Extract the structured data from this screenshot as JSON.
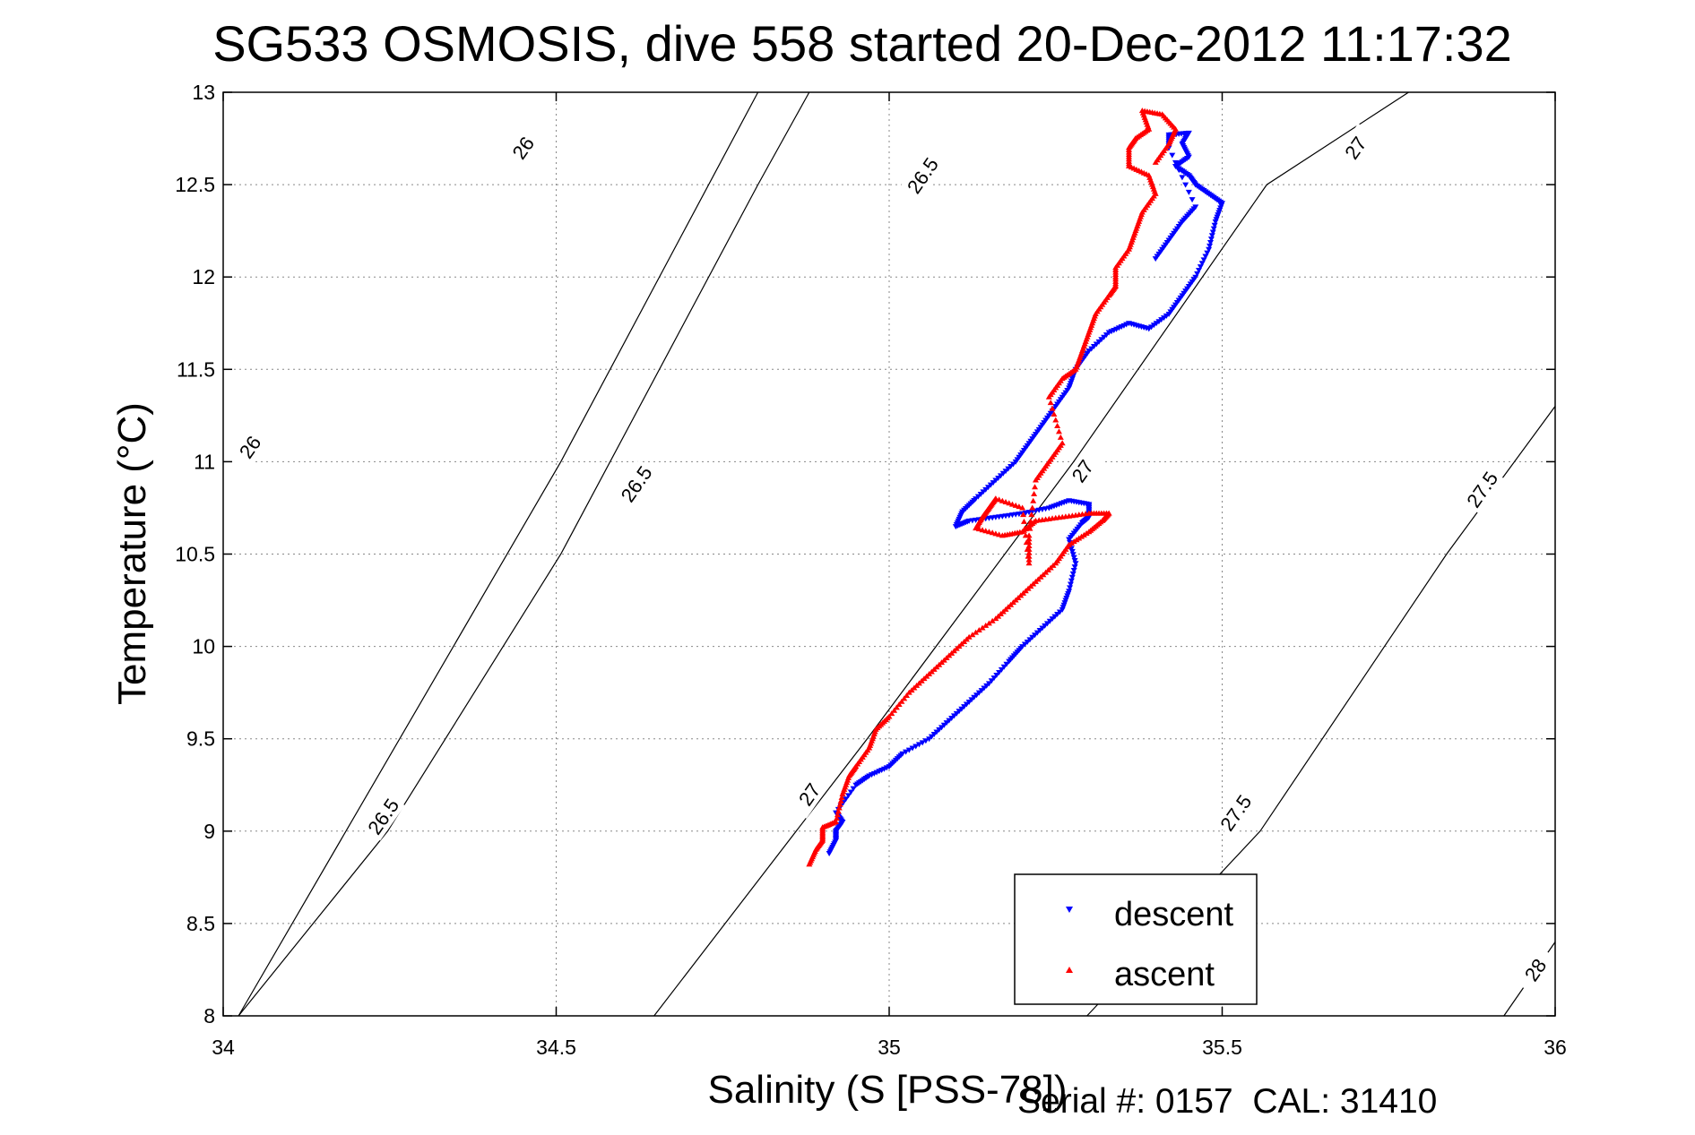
{
  "chart_data": {
    "type": "scatter",
    "title": "SG533 OSMOSIS, dive 558 started 20-Dec-2012 11:17:32",
    "xlabel": "Salinity (S [PSS-78])",
    "ylabel": "Temperature (°C)",
    "xlim": [
      34,
      36
    ],
    "ylim": [
      8,
      13
    ],
    "xticks": [
      "34",
      "34.5",
      "35",
      "35.5",
      "36"
    ],
    "yticks": [
      "8",
      "8.5",
      "9",
      "9.5",
      "10",
      "10.5",
      "11",
      "11.5",
      "12",
      "12.5",
      "13"
    ],
    "grid": true,
    "legend_position": "bottom-right",
    "legend": [
      "descent",
      "ascent"
    ],
    "contours": [
      {
        "level": 26.0,
        "points": [
          [
            34.023,
            8.0
          ],
          [
            34.507,
            11.0
          ],
          [
            34.803,
            13.0
          ]
        ],
        "labels": [
          {
            "text": "26",
            "x": 34.04,
            "y": 11.08
          },
          {
            "text": "26",
            "x": 34.45,
            "y": 12.7
          }
        ]
      },
      {
        "level": 26.5,
        "points": [
          [
            34.023,
            8.0
          ],
          [
            34.247,
            9.0
          ],
          [
            34.507,
            10.5
          ],
          [
            34.803,
            12.5
          ],
          [
            34.88,
            13.0
          ]
        ],
        "labels": [
          {
            "text": "26.5",
            "x": 34.24,
            "y": 9.08
          },
          {
            "text": "26.5",
            "x": 34.62,
            "y": 10.88
          },
          {
            "text": "26.5",
            "x": 35.05,
            "y": 12.55
          }
        ]
      },
      {
        "level": 27.0,
        "points": [
          [
            34.647,
            8.0
          ],
          [
            34.967,
            9.5
          ],
          [
            35.277,
            11.0
          ],
          [
            35.567,
            12.5
          ],
          [
            35.78,
            13.0
          ]
        ],
        "labels": [
          {
            "text": "27",
            "x": 34.88,
            "y": 9.2
          },
          {
            "text": "27",
            "x": 35.29,
            "y": 10.95
          },
          {
            "text": "27",
            "x": 35.7,
            "y": 12.7
          }
        ]
      },
      {
        "level": 27.5,
        "points": [
          [
            35.297,
            8.0
          ],
          [
            35.557,
            9.0
          ],
          [
            35.837,
            10.5
          ],
          [
            36.0,
            11.3
          ]
        ],
        "labels": [
          {
            "text": "27.5",
            "x": 35.52,
            "y": 9.1
          },
          {
            "text": "27.5",
            "x": 35.89,
            "y": 10.85
          }
        ]
      },
      {
        "level": 28.0,
        "points": [
          [
            35.923,
            8.0
          ],
          [
            36.0,
            8.4
          ]
        ],
        "labels": [
          {
            "text": "28",
            "x": 35.97,
            "y": 8.25
          }
        ]
      }
    ],
    "series": [
      {
        "name": "descent",
        "color": "#0000ff",
        "marker": "triangle-down",
        "points": [
          [
            34.91,
            8.88
          ],
          [
            34.92,
            8.95
          ],
          [
            34.92,
            9.0
          ],
          [
            34.93,
            9.05
          ],
          [
            34.92,
            9.1
          ],
          [
            34.95,
            9.25
          ],
          [
            34.97,
            9.3
          ],
          [
            35.0,
            9.35
          ],
          [
            35.02,
            9.42
          ],
          [
            35.06,
            9.5
          ],
          [
            35.09,
            9.6
          ],
          [
            35.12,
            9.7
          ],
          [
            35.15,
            9.8
          ],
          [
            35.18,
            9.92
          ],
          [
            35.2,
            10.0
          ],
          [
            35.23,
            10.1
          ],
          [
            35.26,
            10.2
          ],
          [
            35.27,
            10.3
          ],
          [
            35.28,
            10.45
          ],
          [
            35.27,
            10.58
          ],
          [
            35.29,
            10.67
          ],
          [
            35.3,
            10.7
          ],
          [
            35.3,
            10.77
          ],
          [
            35.27,
            10.79
          ],
          [
            35.24,
            10.75
          ],
          [
            35.2,
            10.72
          ],
          [
            35.16,
            10.7
          ],
          [
            35.12,
            10.68
          ],
          [
            35.1,
            10.65
          ],
          [
            35.11,
            10.73
          ],
          [
            35.13,
            10.8
          ],
          [
            35.16,
            10.9
          ],
          [
            35.19,
            11.0
          ],
          [
            35.21,
            11.1
          ],
          [
            35.23,
            11.2
          ],
          [
            35.25,
            11.3
          ],
          [
            35.27,
            11.4
          ],
          [
            35.28,
            11.5
          ],
          [
            35.3,
            11.6
          ],
          [
            35.33,
            11.7
          ],
          [
            35.36,
            11.75
          ],
          [
            35.39,
            11.72
          ],
          [
            35.42,
            11.8
          ],
          [
            35.44,
            11.9
          ],
          [
            35.46,
            12.0
          ],
          [
            35.48,
            12.15
          ],
          [
            35.49,
            12.3
          ],
          [
            35.5,
            12.4
          ],
          [
            35.48,
            12.45
          ],
          [
            35.46,
            12.5
          ],
          [
            35.45,
            12.55
          ],
          [
            35.43,
            12.6
          ],
          [
            35.45,
            12.65
          ],
          [
            35.44,
            12.72
          ],
          [
            35.45,
            12.78
          ],
          [
            35.42,
            12.77
          ],
          [
            35.42,
            12.7
          ],
          [
            35.46,
            12.38
          ],
          [
            35.44,
            12.3
          ],
          [
            35.42,
            12.2
          ],
          [
            35.4,
            12.1
          ]
        ]
      },
      {
        "name": "ascent",
        "color": "#ff0000",
        "marker": "triangle-up",
        "points": [
          [
            34.88,
            8.82
          ],
          [
            34.89,
            8.9
          ],
          [
            34.9,
            8.95
          ],
          [
            34.9,
            9.02
          ],
          [
            34.92,
            9.05
          ],
          [
            34.93,
            9.2
          ],
          [
            34.94,
            9.3
          ],
          [
            34.95,
            9.35
          ],
          [
            34.97,
            9.45
          ],
          [
            34.98,
            9.55
          ],
          [
            35.0,
            9.62
          ],
          [
            35.03,
            9.75
          ],
          [
            35.06,
            9.85
          ],
          [
            35.09,
            9.95
          ],
          [
            35.12,
            10.05
          ],
          [
            35.16,
            10.15
          ],
          [
            35.19,
            10.25
          ],
          [
            35.22,
            10.35
          ],
          [
            35.25,
            10.45
          ],
          [
            35.27,
            10.55
          ],
          [
            35.3,
            10.62
          ],
          [
            35.32,
            10.68
          ],
          [
            35.33,
            10.72
          ],
          [
            35.3,
            10.72
          ],
          [
            35.26,
            10.7
          ],
          [
            35.22,
            10.68
          ],
          [
            35.2,
            10.62
          ],
          [
            35.17,
            10.6
          ],
          [
            35.13,
            10.64
          ],
          [
            35.14,
            10.7
          ],
          [
            35.15,
            10.75
          ],
          [
            35.16,
            10.8
          ],
          [
            35.2,
            10.75
          ],
          [
            35.21,
            10.45
          ],
          [
            35.21,
            10.6
          ],
          [
            35.22,
            10.9
          ],
          [
            35.24,
            11.0
          ],
          [
            35.26,
            11.1
          ],
          [
            35.24,
            11.35
          ],
          [
            35.26,
            11.45
          ],
          [
            35.28,
            11.5
          ],
          [
            35.29,
            11.6
          ],
          [
            35.3,
            11.7
          ],
          [
            35.31,
            11.8
          ],
          [
            35.33,
            11.9
          ],
          [
            35.34,
            11.95
          ],
          [
            35.34,
            12.05
          ],
          [
            35.36,
            12.15
          ],
          [
            35.37,
            12.25
          ],
          [
            35.38,
            12.35
          ],
          [
            35.4,
            12.45
          ],
          [
            35.39,
            12.55
          ],
          [
            35.36,
            12.6
          ],
          [
            35.36,
            12.7
          ],
          [
            35.37,
            12.75
          ],
          [
            35.39,
            12.8
          ],
          [
            35.38,
            12.9
          ],
          [
            35.41,
            12.88
          ],
          [
            35.43,
            12.8
          ],
          [
            35.42,
            12.72
          ],
          [
            35.4,
            12.62
          ]
        ]
      }
    ]
  },
  "footer": {
    "text": "Serial #: 0157  CAL: 31410"
  }
}
